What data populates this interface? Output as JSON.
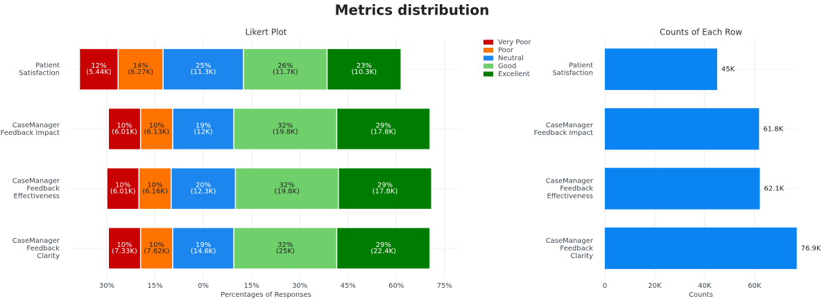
{
  "title": "Metrics distribution",
  "chart_data": [
    {
      "type": "likert",
      "title": "Likert Plot",
      "x_label": "Percentages of Responses",
      "categories": [
        "Patient\nSatisfaction",
        "CaseManager\nFeedback Impact",
        "CaseManager\nFeedback\nEffectiveness",
        "CaseManager\nFeedback\nClarity"
      ],
      "series": [
        {
          "name": "Very Poor",
          "color": "#c80000",
          "values": [
            12,
            10,
            10,
            10
          ],
          "value_labels": [
            "12%",
            "10%",
            "10%",
            "10%"
          ],
          "count_labels": [
            "(5.44K)",
            "(6.01K)",
            "(6.01K)",
            "(7.33K)"
          ]
        },
        {
          "name": "Poor",
          "color": "#ff7300",
          "values": [
            14,
            10,
            10,
            10
          ],
          "value_labels": [
            "14%",
            "10%",
            "10%",
            "10%"
          ],
          "count_labels": [
            "(6.27K)",
            "(6.13K)",
            "(6.16K)",
            "(7.62K)"
          ]
        },
        {
          "name": "Neutral",
          "color": "#1c86ee",
          "values": [
            25,
            19,
            20,
            19
          ],
          "value_labels": [
            "25%",
            "19%",
            "20%",
            "19%"
          ],
          "count_labels": [
            "(11.3K)",
            "(12K)",
            "(12.3K)",
            "(14.6K)"
          ]
        },
        {
          "name": "Good",
          "color": "#6fcf6a",
          "values": [
            26,
            32,
            32,
            32
          ],
          "value_labels": [
            "26%",
            "32%",
            "32%",
            "32%"
          ],
          "count_labels": [
            "(11.7K)",
            "(19.8K)",
            "(19.8K)",
            "(25K)"
          ]
        },
        {
          "name": "Excellent",
          "color": "#007d00",
          "values": [
            23,
            29,
            29,
            29
          ],
          "value_labels": [
            "23%",
            "29%",
            "29%",
            "29%"
          ],
          "count_labels": [
            "(10.3K)",
            "(17.8K)",
            "(17.8K)",
            "(22.4K)"
          ]
        }
      ],
      "xlim": [
        -41,
        80
      ],
      "xticks": [
        {
          "value": -30,
          "label": "30%"
        },
        {
          "value": -15,
          "label": "15%"
        },
        {
          "value": 0,
          "label": "0%"
        },
        {
          "value": 15,
          "label": "15%"
        },
        {
          "value": 30,
          "label": "30%"
        },
        {
          "value": 45,
          "label": "45%"
        },
        {
          "value": 60,
          "label": "60%"
        },
        {
          "value": 75,
          "label": "75%"
        }
      ],
      "grid": true,
      "legend": "top-right"
    },
    {
      "type": "bar",
      "orientation": "horizontal",
      "title": "Counts of Each Row",
      "x_label": "Counts",
      "categories": [
        "Patient\nSatisfaction",
        "CaseManager\nFeedback Impact",
        "CaseManager\nFeedback\nEffectiveness",
        "CaseManager\nFeedback\nClarity"
      ],
      "values": [
        45000,
        61800,
        62100,
        76900
      ],
      "value_labels": [
        "45K",
        "61.8K",
        "62.1K",
        "76.9K"
      ],
      "color": "#0a84f0",
      "xlim": [
        0,
        77000
      ],
      "xticks": [
        0,
        {
          "value": 20000,
          "label": "20K"
        },
        {
          "value": 40000,
          "label": "40K"
        },
        {
          "value": 60000,
          "label": "60K"
        }
      ],
      "grid": true
    }
  ]
}
